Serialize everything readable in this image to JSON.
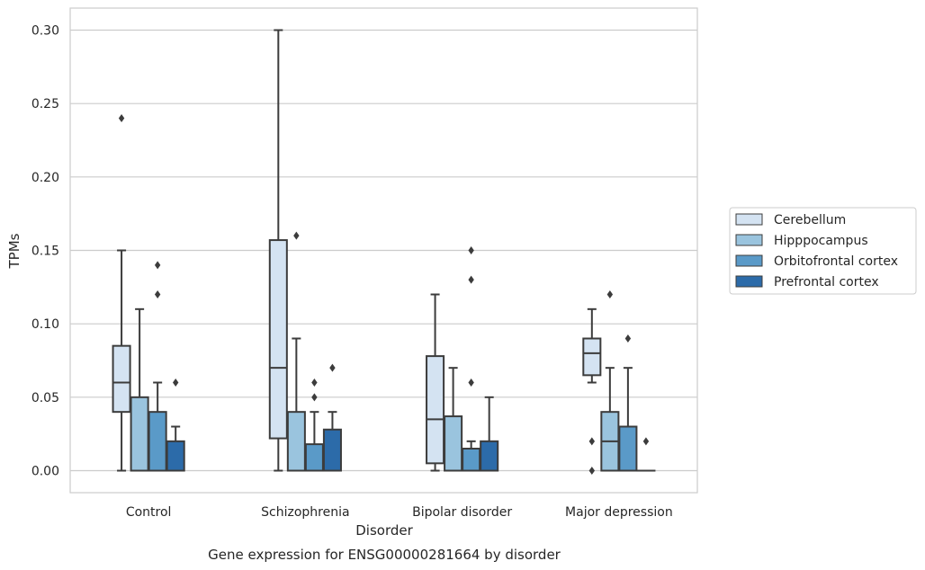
{
  "caption": "Gene expression for ENSG00000281664 by disorder",
  "chart_data": {
    "type": "box",
    "xlabel": "Disorder",
    "ylabel": "TPMs",
    "ylim": [
      -0.015,
      0.315
    ],
    "yticks": [
      "0.00",
      "0.05",
      "0.10",
      "0.15",
      "0.20",
      "0.25",
      "0.30"
    ],
    "grid": true,
    "legend_position": "right",
    "categories": [
      "Control",
      "Schizophrenia",
      "Bipolar disorder",
      "Major depression"
    ],
    "series": [
      {
        "name": "Cerebellum",
        "color": "#d4e3f2",
        "boxes": [
          {
            "whislo": 0.0,
            "q1": 0.04,
            "med": 0.06,
            "q3": 0.085,
            "whishi": 0.15,
            "fliers": [
              0.24
            ]
          },
          {
            "whislo": 0.0,
            "q1": 0.022,
            "med": 0.07,
            "q3": 0.157,
            "whishi": 0.3,
            "fliers": []
          },
          {
            "whislo": 0.0,
            "q1": 0.005,
            "med": 0.035,
            "q3": 0.078,
            "whishi": 0.12,
            "fliers": []
          },
          {
            "whislo": 0.06,
            "q1": 0.065,
            "med": 0.08,
            "q3": 0.09,
            "whishi": 0.11,
            "fliers": [
              0.02,
              0.0
            ]
          }
        ]
      },
      {
        "name": "Hipppocampus",
        "color": "#9ac4de",
        "boxes": [
          {
            "whislo": 0.0,
            "q1": 0.0,
            "med": 0.0,
            "q3": 0.05,
            "whishi": 0.11,
            "fliers": []
          },
          {
            "whislo": 0.0,
            "q1": 0.0,
            "med": 0.0,
            "q3": 0.04,
            "whishi": 0.09,
            "fliers": [
              0.16
            ]
          },
          {
            "whislo": 0.0,
            "q1": 0.0,
            "med": 0.0,
            "q3": 0.037,
            "whishi": 0.07,
            "fliers": []
          },
          {
            "whislo": 0.0,
            "q1": 0.0,
            "med": 0.02,
            "q3": 0.04,
            "whishi": 0.07,
            "fliers": [
              0.12
            ]
          }
        ]
      },
      {
        "name": "Orbitofrontal cortex",
        "color": "#5a9ac8",
        "boxes": [
          {
            "whislo": 0.0,
            "q1": 0.0,
            "med": 0.0,
            "q3": 0.04,
            "whishi": 0.06,
            "fliers": [
              0.12,
              0.14
            ]
          },
          {
            "whislo": 0.0,
            "q1": 0.0,
            "med": 0.0,
            "q3": 0.018,
            "whishi": 0.04,
            "fliers": [
              0.05,
              0.06
            ]
          },
          {
            "whislo": 0.0,
            "q1": 0.0,
            "med": 0.0,
            "q3": 0.015,
            "whishi": 0.02,
            "fliers": [
              0.06,
              0.13,
              0.15
            ]
          },
          {
            "whislo": 0.0,
            "q1": 0.0,
            "med": 0.0,
            "q3": 0.03,
            "whishi": 0.07,
            "fliers": [
              0.09
            ]
          }
        ]
      },
      {
        "name": "Prefrontal cortex",
        "color": "#2c6ba9",
        "boxes": [
          {
            "whislo": 0.0,
            "q1": 0.0,
            "med": 0.0,
            "q3": 0.02,
            "whishi": 0.03,
            "fliers": [
              0.06
            ]
          },
          {
            "whislo": 0.0,
            "q1": 0.0,
            "med": 0.0,
            "q3": 0.028,
            "whishi": 0.04,
            "fliers": [
              0.07
            ]
          },
          {
            "whislo": 0.0,
            "q1": 0.0,
            "med": 0.0,
            "q3": 0.02,
            "whishi": 0.05,
            "fliers": []
          },
          {
            "whislo": 0.0,
            "q1": 0.0,
            "med": 0.0,
            "q3": 0.0,
            "whishi": 0.0,
            "fliers": [
              0.02
            ]
          }
        ]
      }
    ]
  }
}
